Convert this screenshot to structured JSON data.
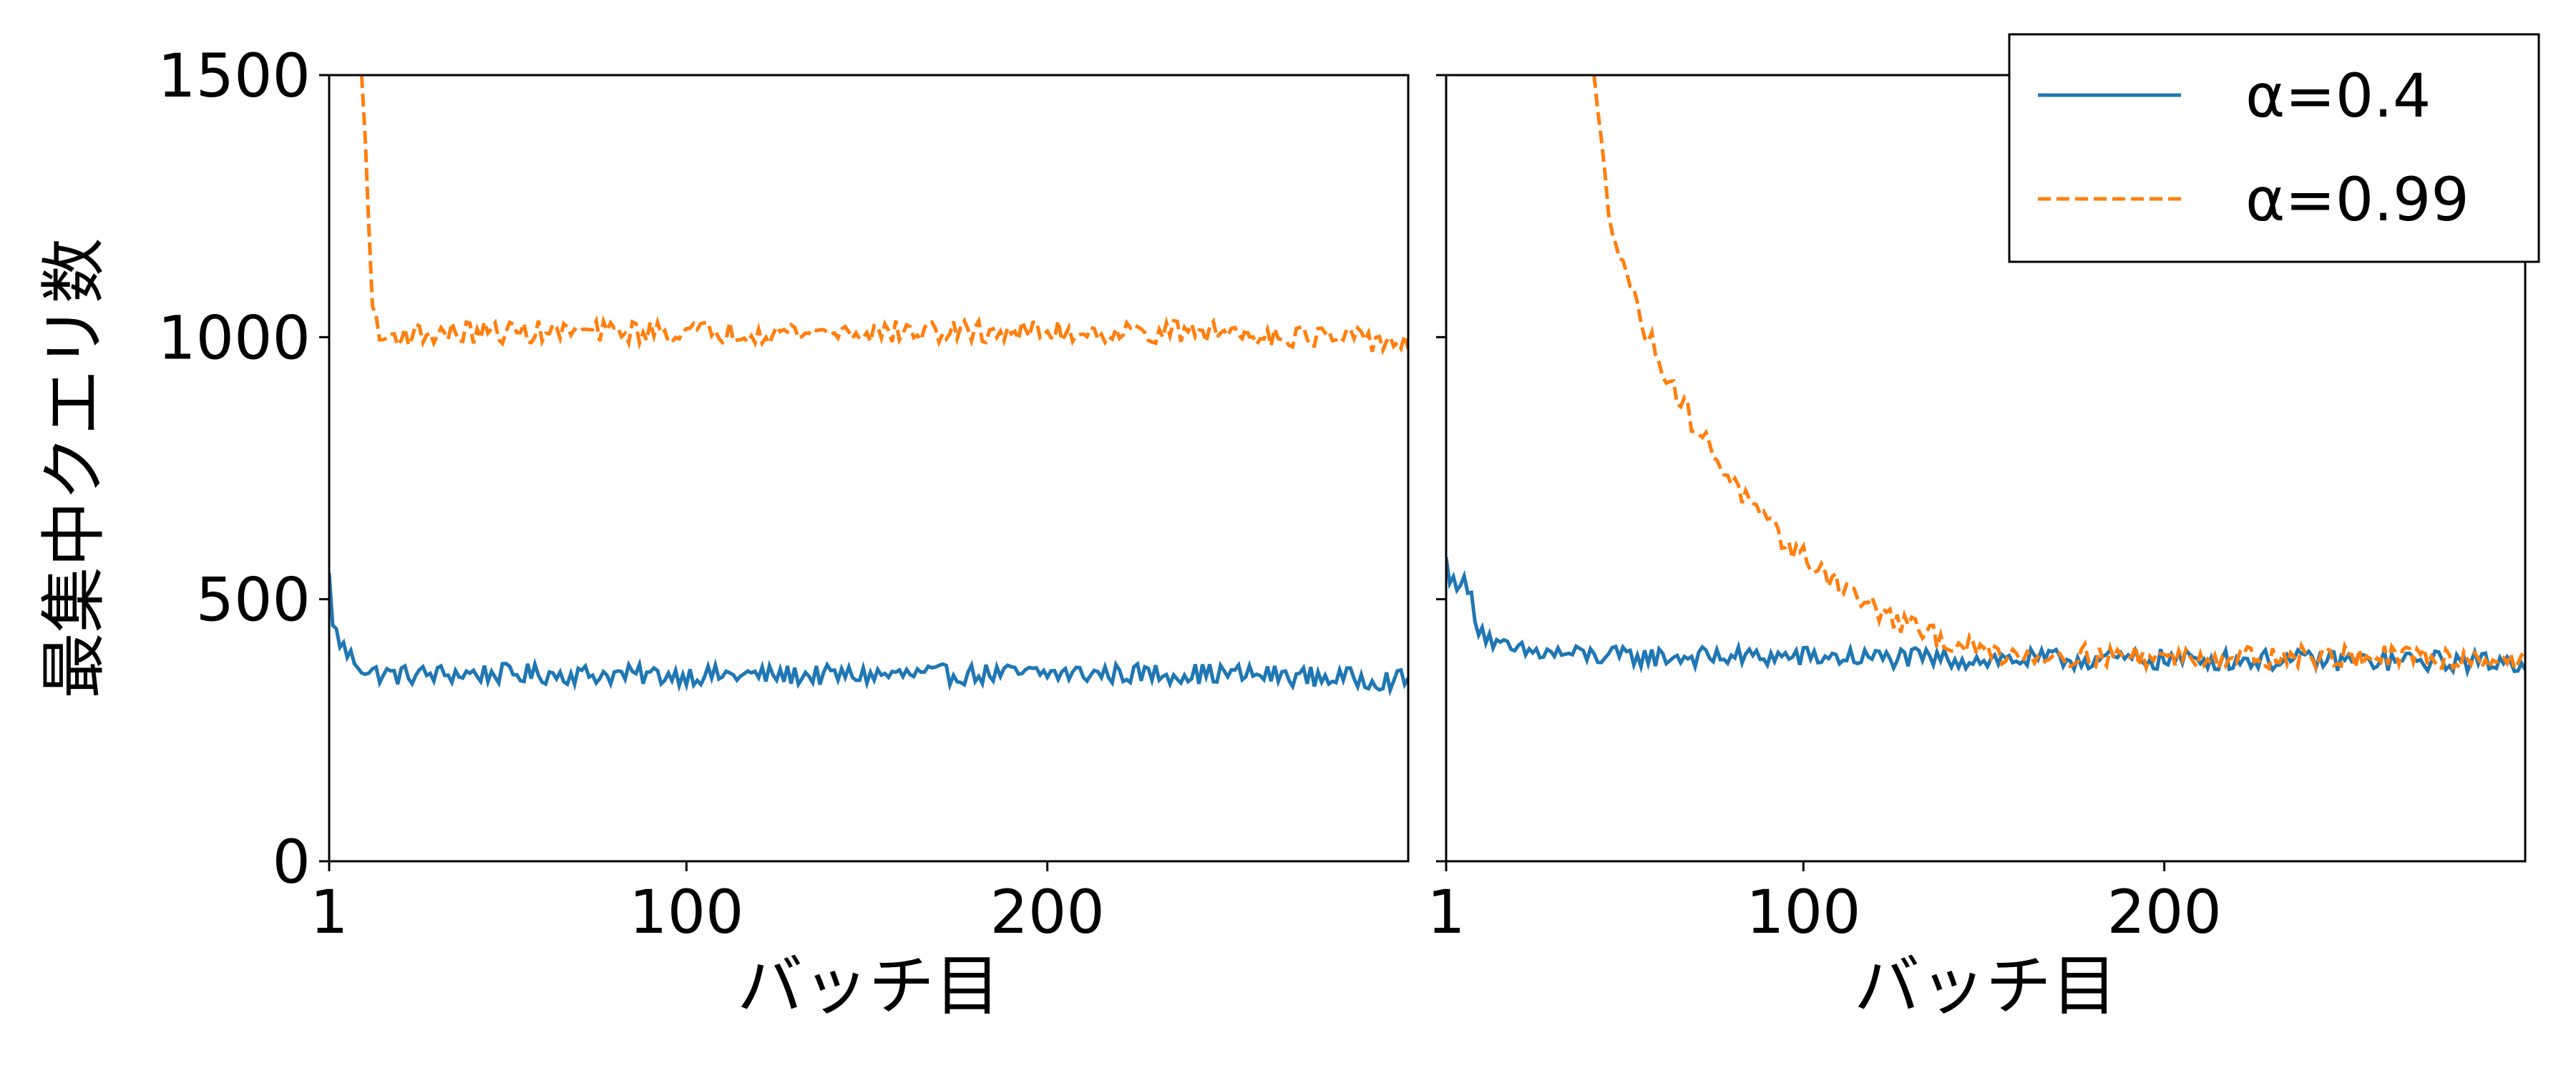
{
  "chart_data": [
    {
      "type": "line",
      "panel": "left",
      "xlabel": "バッチ目",
      "ylabel": "最集中クエリ数",
      "xlim": [
        1,
        300
      ],
      "ylim": [
        0,
        1500
      ],
      "x_ticks": [
        1,
        100,
        200
      ],
      "y_ticks": [
        0,
        500,
        1000,
        1500
      ],
      "series": [
        {
          "name": "α=0.4",
          "color": "#1f77b4",
          "style": "solid",
          "points": [
            [
              1,
              550
            ],
            [
              2,
              450
            ],
            [
              4,
              420
            ],
            [
              6,
              395
            ],
            [
              8,
              385
            ],
            [
              12,
              360
            ],
            [
              20,
              355
            ],
            [
              40,
              358
            ],
            [
              100,
              355
            ],
            [
              150,
              355
            ],
            [
              200,
              358
            ],
            [
              250,
              358
            ],
            [
              300,
              345
            ]
          ]
        },
        {
          "name": "α=0.99",
          "color": "#ff7f0e",
          "style": "dashed",
          "points": [
            [
              10,
              1500
            ],
            [
              11,
              1380
            ],
            [
              12,
              1200
            ],
            [
              13,
              1080
            ],
            [
              14,
              1020
            ],
            [
              15,
              995
            ],
            [
              20,
              1005
            ],
            [
              50,
              1010
            ],
            [
              100,
              1010
            ],
            [
              150,
              1010
            ],
            [
              200,
              1010
            ],
            [
              250,
              1010
            ],
            [
              300,
              990
            ]
          ]
        }
      ]
    },
    {
      "type": "line",
      "panel": "right",
      "xlabel": "バッチ目",
      "ylabel": "",
      "xlim": [
        1,
        300
      ],
      "ylim": [
        0,
        1500
      ],
      "x_ticks": [
        1,
        100,
        200
      ],
      "series": [
        {
          "name": "α=0.4",
          "color": "#1f77b4",
          "style": "solid",
          "points": [
            [
              1,
              580
            ],
            [
              2,
              530
            ],
            [
              5,
              540
            ],
            [
              8,
              500
            ],
            [
              10,
              450
            ],
            [
              15,
              410
            ],
            [
              20,
              400
            ],
            [
              50,
              390
            ],
            [
              100,
              390
            ],
            [
              150,
              385
            ],
            [
              200,
              385
            ],
            [
              250,
              383
            ],
            [
              300,
              380
            ]
          ]
        },
        {
          "name": "α=0.99",
          "color": "#ff7f0e",
          "style": "dashed",
          "points": [
            [
              42,
              1500
            ],
            [
              45,
              1300
            ],
            [
              46,
              1240
            ],
            [
              50,
              1150
            ],
            [
              55,
              1030
            ],
            [
              60,
              960
            ],
            [
              65,
              890
            ],
            [
              70,
              830
            ],
            [
              75,
              780
            ],
            [
              80,
              730
            ],
            [
              85,
              680
            ],
            [
              90,
              640
            ],
            [
              95,
              610
            ],
            [
              100,
              580
            ],
            [
              110,
              530
            ],
            [
              120,
              480
            ],
            [
              130,
              445
            ],
            [
              140,
              420
            ],
            [
              150,
              400
            ],
            [
              160,
              395
            ],
            [
              200,
              390
            ],
            [
              250,
              390
            ],
            [
              300,
              385
            ]
          ]
        }
      ]
    }
  ],
  "legend": {
    "placement": "top-right",
    "items": [
      {
        "label": "α=0.4",
        "color": "#1f77b4",
        "style": "solid"
      },
      {
        "label": "α=0.99",
        "color": "#ff7f0e",
        "style": "dashed"
      }
    ]
  }
}
